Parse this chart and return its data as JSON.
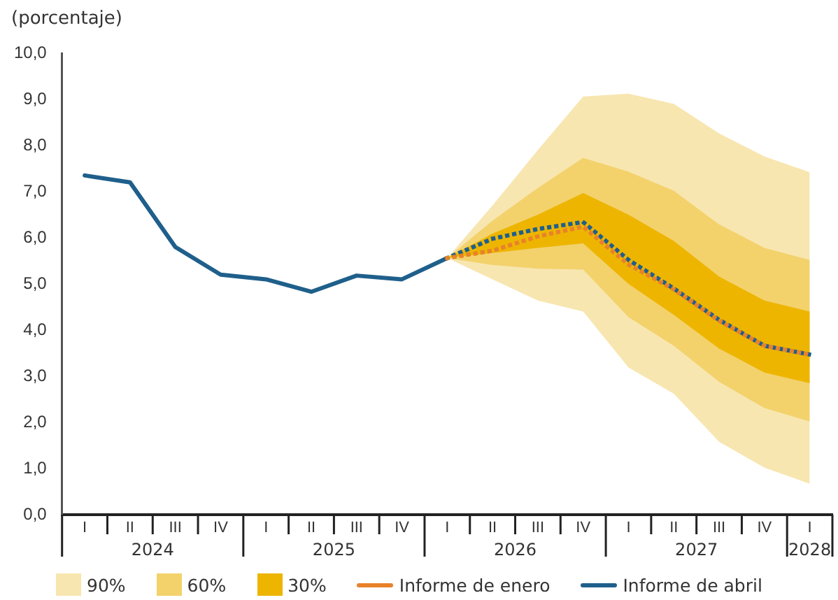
{
  "chart_data": {
    "type": "line",
    "ylabel": "(porcentaje)",
    "categories": [
      "I",
      "II",
      "III",
      "IV",
      "I",
      "II",
      "III",
      "IV",
      "I",
      "II",
      "III",
      "IV",
      "I",
      "II",
      "III",
      "IV",
      "I"
    ],
    "annotations": [
      "2024",
      "2025",
      "2026",
      "2027",
      "2028"
    ],
    "ylim": [
      0,
      10
    ],
    "yticks": [
      {
        "value": 0,
        "label": "0,0"
      },
      {
        "value": 1,
        "label": "1,0"
      },
      {
        "value": 2,
        "label": "2,0"
      },
      {
        "value": 3,
        "label": "3,0"
      },
      {
        "value": 4,
        "label": "4,0"
      },
      {
        "value": 5,
        "label": "5,0"
      },
      {
        "value": 6,
        "label": "6,0"
      },
      {
        "value": 7,
        "label": "7,0"
      },
      {
        "value": 8,
        "label": "8,0"
      },
      {
        "value": 9,
        "label": "9,0"
      },
      {
        "value": 10,
        "label": "10,0"
      }
    ],
    "grid": false,
    "legend": "bottom",
    "marker": "none",
    "series": [
      {
        "name": "90%",
        "type": "area",
        "color": "#f8e6b0",
        "values": [
          null,
          null,
          null,
          null,
          null,
          null,
          null,
          null,
          null,
          null,
          null,
          null,
          null,
          null,
          null,
          null,
          null
        ],
        "lower": [
          null,
          null,
          null,
          null,
          null,
          null,
          null,
          null,
          5.56,
          5.1,
          4.64,
          4.4,
          3.19,
          2.62,
          1.58,
          1.02,
          0.67
        ],
        "upper": [
          null,
          null,
          null,
          null,
          null,
          null,
          null,
          null,
          5.56,
          6.7,
          7.9,
          9.06,
          9.12,
          8.9,
          8.26,
          7.76,
          7.42
        ]
      },
      {
        "name": "60%",
        "type": "area",
        "color": "#f3d26c",
        "values": [
          null,
          null,
          null,
          null,
          null,
          null,
          null,
          null,
          null,
          null,
          null,
          null,
          null,
          null,
          null,
          null,
          null
        ],
        "lower": [
          null,
          null,
          null,
          null,
          null,
          null,
          null,
          null,
          5.56,
          5.41,
          5.33,
          5.31,
          4.28,
          3.66,
          2.88,
          2.31,
          2.02
        ],
        "upper": [
          null,
          null,
          null,
          null,
          null,
          null,
          null,
          null,
          5.56,
          6.37,
          7.08,
          7.73,
          7.43,
          7.02,
          6.29,
          5.78,
          5.52
        ]
      },
      {
        "name": "30%",
        "type": "area",
        "color": "#edb500",
        "values": [
          null,
          null,
          null,
          null,
          null,
          null,
          null,
          null,
          null,
          null,
          null,
          null,
          null,
          null,
          null,
          null,
          null
        ],
        "lower": [
          null,
          null,
          null,
          null,
          null,
          null,
          null,
          null,
          5.56,
          5.67,
          5.78,
          5.88,
          5.0,
          4.33,
          3.6,
          3.08,
          2.85
        ],
        "upper": [
          null,
          null,
          null,
          null,
          null,
          null,
          null,
          null,
          5.56,
          6.09,
          6.5,
          6.97,
          6.5,
          5.93,
          5.16,
          4.64,
          4.4
        ]
      },
      {
        "name": "Informe de enero",
        "color": "#e8822a",
        "line_style": "dotted",
        "values": [
          null,
          null,
          null,
          null,
          null,
          null,
          null,
          null,
          5.56,
          5.72,
          6.03,
          6.24,
          5.42,
          4.88,
          4.2,
          3.66,
          3.47
        ]
      },
      {
        "name": "Informe de abril",
        "color": "#1f5f8b",
        "line_style": "solid",
        "values": [
          7.35,
          7.2,
          5.8,
          5.2,
          5.1,
          4.83,
          5.18,
          5.1,
          5.56,
          null,
          null,
          null,
          null,
          null,
          null,
          null,
          null
        ]
      },
      {
        "color": "#1f5f8b",
        "line_style": "dotted",
        "values": [
          null,
          null,
          null,
          null,
          null,
          null,
          null,
          null,
          5.56,
          5.98,
          6.19,
          6.34,
          5.52,
          4.9,
          4.22,
          3.66,
          3.47
        ]
      }
    ]
  }
}
